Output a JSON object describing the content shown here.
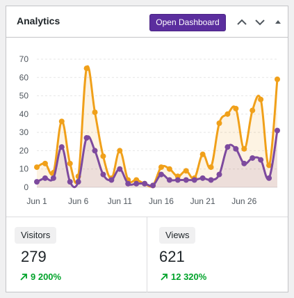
{
  "widget": {
    "title": "Analytics",
    "dashboard_button": "Open Dashboard",
    "icons": [
      "chevron-up-icon",
      "chevron-down-icon",
      "collapse-triangle-icon"
    ]
  },
  "chart_data": {
    "type": "line",
    "y_ticks": [
      0,
      10,
      20,
      30,
      40,
      50,
      60,
      70
    ],
    "ylim": [
      0,
      70
    ],
    "x_tick_labels": [
      "Jun 1",
      "Jun 6",
      "Jun 11",
      "Jun 16",
      "Jun 21",
      "Jun 26"
    ],
    "x_categories": [
      "Jun 1",
      "Jun 2",
      "Jun 3",
      "Jun 4",
      "Jun 5",
      "Jun 6",
      "Jun 7",
      "Jun 8",
      "Jun 9",
      "Jun 10",
      "Jun 11",
      "Jun 12",
      "Jun 13",
      "Jun 14",
      "Jun 15",
      "Jun 16",
      "Jun 17",
      "Jun 18",
      "Jun 19",
      "Jun 20",
      "Jun 21",
      "Jun 22",
      "Jun 23",
      "Jun 24",
      "Jun 25",
      "Jun 26",
      "Jun 27",
      "Jun 28",
      "Jun 29",
      "Jun 30"
    ],
    "grid": true,
    "series": [
      {
        "color": "#f0a01a",
        "values": [
          11,
          13,
          8,
          36,
          13,
          6,
          65,
          41,
          17,
          5,
          20,
          4,
          4,
          2,
          1,
          11,
          10,
          6,
          9,
          5,
          18,
          11,
          35,
          40,
          43,
          21,
          42,
          48,
          12,
          59
        ]
      },
      {
        "color": "#7d4a9e",
        "values": [
          3,
          5,
          5,
          22,
          3,
          3,
          27,
          20,
          7,
          4,
          10,
          2,
          2,
          2,
          1,
          7,
          4,
          4,
          4,
          4,
          5,
          4,
          7,
          22,
          21,
          13,
          16,
          15,
          5,
          31
        ]
      }
    ]
  },
  "stats": {
    "visitors": {
      "label": "Visitors",
      "value": "279",
      "change": "9 200%"
    },
    "views": {
      "label": "Views",
      "value": "621",
      "change": "12 320%"
    }
  }
}
